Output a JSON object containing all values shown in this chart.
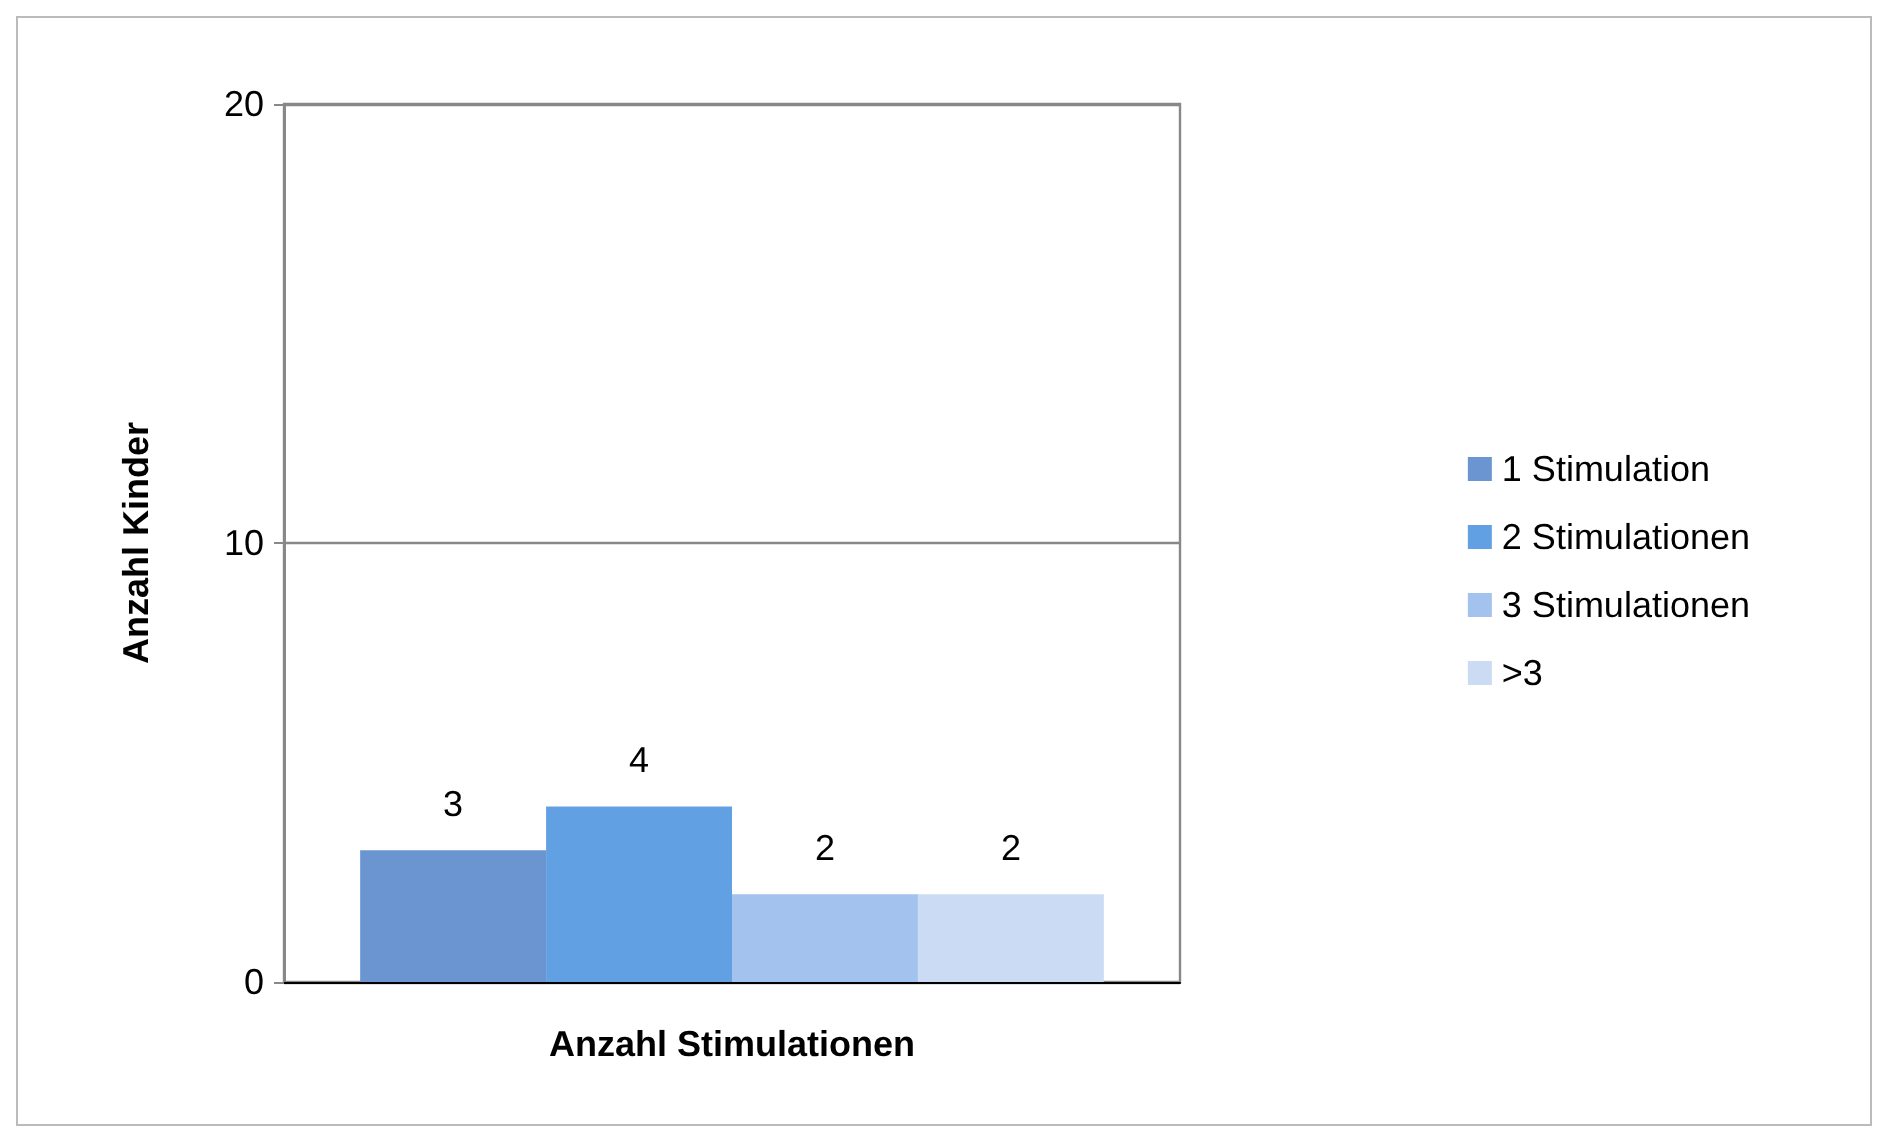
{
  "chart_data": {
    "type": "bar",
    "xlabel": "Anzahl Stimulationen",
    "ylabel": "Anzahl Kinder",
    "categories": [
      null
    ],
    "series": [
      {
        "name": "1 Stimulation",
        "color": "#6a95d0",
        "values": [
          3
        ]
      },
      {
        "name": "2 Stimulationen",
        "color": "#62a0e4",
        "values": [
          4
        ]
      },
      {
        "name": "3 Stimulationen",
        "color": "#a3c2ee",
        "values": [
          2
        ]
      },
      {
        "name": ">3",
        "color": "#cbdbf4",
        "values": [
          2
        ]
      }
    ],
    "ylim": [
      0,
      20
    ],
    "yticks": [
      0,
      10,
      20
    ],
    "grid": "y",
    "legend": "right",
    "data_labels": true
  }
}
